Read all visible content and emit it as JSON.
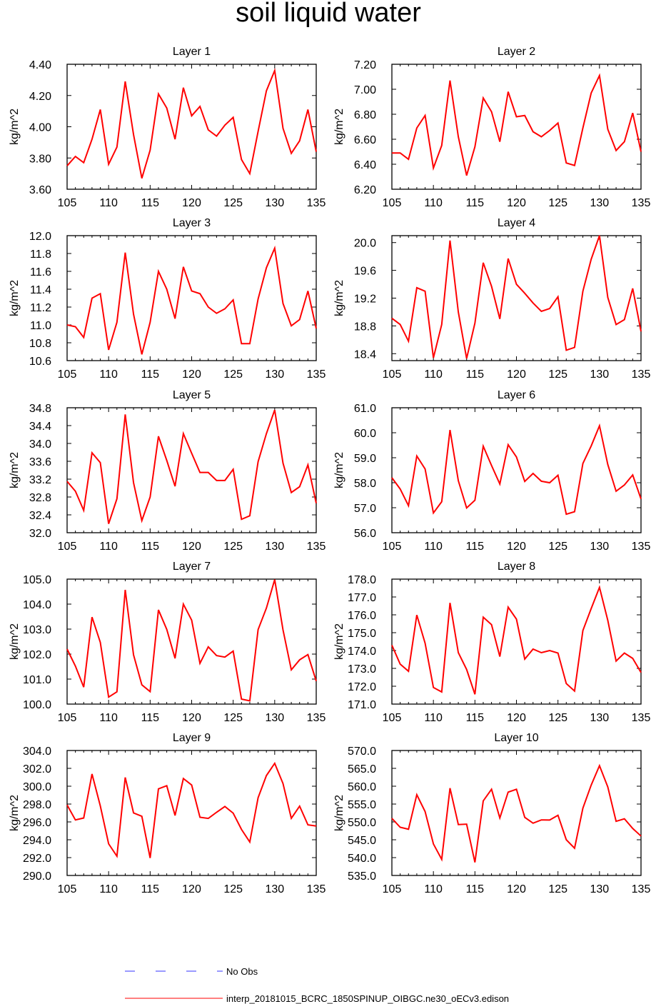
{
  "title": "soil liquid water",
  "colors": {
    "series": "#ff0000",
    "obs": "#3333ff",
    "axis": "#000000"
  },
  "legend": {
    "placement": "bottom-center",
    "entries": [
      {
        "label": "No Obs",
        "color": "#3333ff",
        "style": "dashed"
      },
      {
        "label": "interp_20181015_BCRC_1850SPINUP_OIBGC.ne30_oECv3.edison",
        "color": "#ff0000",
        "style": "solid"
      }
    ]
  },
  "chart_data": [
    {
      "type": "line",
      "title": "Layer 1",
      "ylabel": "kg/m^2",
      "xlim": [
        105,
        135
      ],
      "xticks": [
        "105",
        "110",
        "115",
        "120",
        "125",
        "130",
        "135"
      ],
      "ylim": [
        3.6,
        4.4
      ],
      "yticks": [
        "3.60",
        "3.80",
        "4.00",
        "4.20",
        "4.40"
      ],
      "x": [
        105,
        106,
        107,
        108,
        109,
        110,
        111,
        112,
        113,
        114,
        115,
        116,
        117,
        118,
        119,
        120,
        121,
        122,
        123,
        124,
        125,
        126,
        127,
        128,
        129,
        130,
        131,
        132,
        133,
        134,
        135
      ],
      "series": [
        {
          "values": [
            3.75,
            3.81,
            3.77,
            3.92,
            4.11,
            3.76,
            3.87,
            4.29,
            3.95,
            3.67,
            3.85,
            4.21,
            4.12,
            3.92,
            4.25,
            4.07,
            4.13,
            3.98,
            3.94,
            4.01,
            4.06,
            3.79,
            3.7,
            3.97,
            4.23,
            4.36,
            3.99,
            3.83,
            3.91,
            4.11,
            3.84
          ]
        }
      ]
    },
    {
      "type": "line",
      "title": "Layer 2",
      "ylabel": "kg/m^2",
      "xlim": [
        105,
        135
      ],
      "xticks": [
        "105",
        "110",
        "115",
        "120",
        "125",
        "130",
        "135"
      ],
      "ylim": [
        6.2,
        7.2
      ],
      "yticks": [
        "6.20",
        "6.40",
        "6.60",
        "6.80",
        "7.00",
        "7.20"
      ],
      "x": [
        105,
        106,
        107,
        108,
        109,
        110,
        111,
        112,
        113,
        114,
        115,
        116,
        117,
        118,
        119,
        120,
        121,
        122,
        123,
        124,
        125,
        126,
        127,
        128,
        129,
        130,
        131,
        132,
        133,
        134,
        135
      ],
      "series": [
        {
          "values": [
            6.49,
            6.49,
            6.44,
            6.69,
            6.79,
            6.37,
            6.55,
            7.07,
            6.62,
            6.31,
            6.54,
            6.93,
            6.82,
            6.58,
            6.98,
            6.78,
            6.79,
            6.66,
            6.62,
            6.67,
            6.73,
            6.41,
            6.39,
            6.69,
            6.97,
            7.11,
            6.68,
            6.51,
            6.58,
            6.81,
            6.5
          ]
        }
      ]
    },
    {
      "type": "line",
      "title": "Layer 3",
      "ylabel": "kg/m^2",
      "xlim": [
        105,
        135
      ],
      "xticks": [
        "105",
        "110",
        "115",
        "120",
        "125",
        "130",
        "135"
      ],
      "ylim": [
        10.6,
        12.0
      ],
      "yticks": [
        "10.6",
        "10.8",
        "11.0",
        "11.2",
        "11.4",
        "11.6",
        "11.8",
        "12.0"
      ],
      "x": [
        105,
        106,
        107,
        108,
        109,
        110,
        111,
        112,
        113,
        114,
        115,
        116,
        117,
        118,
        119,
        120,
        121,
        122,
        123,
        124,
        125,
        126,
        127,
        128,
        129,
        130,
        131,
        132,
        133,
        134,
        135
      ],
      "series": [
        {
          "values": [
            11.0,
            10.98,
            10.86,
            11.3,
            11.35,
            10.72,
            11.03,
            11.81,
            11.12,
            10.67,
            11.03,
            11.6,
            11.4,
            11.07,
            11.65,
            11.38,
            11.35,
            11.2,
            11.13,
            11.18,
            11.28,
            10.79,
            10.79,
            11.29,
            11.64,
            11.86,
            11.24,
            10.99,
            11.06,
            11.38,
            10.96
          ]
        }
      ]
    },
    {
      "type": "line",
      "title": "Layer 4",
      "ylabel": "kg/m^2",
      "xlim": [
        105,
        135
      ],
      "xticks": [
        "105",
        "110",
        "115",
        "120",
        "125",
        "130",
        "135"
      ],
      "ylim": [
        18.3,
        20.1
      ],
      "yticks": [
        "18.4",
        "18.8",
        "19.2",
        "19.6",
        "20.0"
      ],
      "x": [
        105,
        106,
        107,
        108,
        109,
        110,
        111,
        112,
        113,
        114,
        115,
        116,
        117,
        118,
        119,
        120,
        121,
        122,
        123,
        124,
        125,
        126,
        127,
        128,
        129,
        130,
        131,
        132,
        133,
        134,
        135
      ],
      "series": [
        {
          "values": [
            18.91,
            18.82,
            18.58,
            19.35,
            19.3,
            18.34,
            18.82,
            20.03,
            19.0,
            18.33,
            18.84,
            19.71,
            19.37,
            18.9,
            19.77,
            19.4,
            19.27,
            19.13,
            19.01,
            19.05,
            19.22,
            18.45,
            18.49,
            19.3,
            19.76,
            20.1,
            19.21,
            18.82,
            18.89,
            19.34,
            18.72
          ]
        }
      ]
    },
    {
      "type": "line",
      "title": "Layer 5",
      "ylabel": "kg/m^2",
      "xlim": [
        105,
        135
      ],
      "xticks": [
        "105",
        "110",
        "115",
        "120",
        "125",
        "130",
        "135"
      ],
      "ylim": [
        32.0,
        34.8
      ],
      "yticks": [
        "32.0",
        "32.4",
        "32.8",
        "33.2",
        "33.6",
        "34.0",
        "34.4",
        "34.8"
      ],
      "x": [
        105,
        106,
        107,
        108,
        109,
        110,
        111,
        112,
        113,
        114,
        115,
        116,
        117,
        118,
        119,
        120,
        121,
        122,
        123,
        124,
        125,
        126,
        127,
        128,
        129,
        130,
        131,
        132,
        133,
        134,
        135
      ],
      "series": [
        {
          "values": [
            33.15,
            32.93,
            32.5,
            33.79,
            33.57,
            32.2,
            32.76,
            34.65,
            33.12,
            32.27,
            32.8,
            34.16,
            33.62,
            33.04,
            34.22,
            33.78,
            33.35,
            33.35,
            33.17,
            33.17,
            33.42,
            32.3,
            32.38,
            33.59,
            34.22,
            34.75,
            33.56,
            32.9,
            33.03,
            33.52,
            32.66
          ]
        }
      ]
    },
    {
      "type": "line",
      "title": "Layer 6",
      "ylabel": "kg/m^2",
      "xlim": [
        105,
        135
      ],
      "xticks": [
        "105",
        "110",
        "115",
        "120",
        "125",
        "130",
        "135"
      ],
      "ylim": [
        56.0,
        61.0
      ],
      "yticks": [
        "56.0",
        "57.0",
        "58.0",
        "59.0",
        "60.0",
        "61.0"
      ],
      "x": [
        105,
        106,
        107,
        108,
        109,
        110,
        111,
        112,
        113,
        114,
        115,
        116,
        117,
        118,
        119,
        120,
        121,
        122,
        123,
        124,
        125,
        126,
        127,
        128,
        129,
        130,
        131,
        132,
        133,
        134,
        135
      ],
      "series": [
        {
          "values": [
            58.2,
            57.75,
            57.08,
            59.07,
            58.55,
            56.79,
            57.24,
            60.11,
            58.08,
            56.99,
            57.3,
            59.46,
            58.69,
            57.95,
            59.52,
            59.03,
            58.05,
            58.37,
            58.06,
            58.0,
            58.3,
            56.74,
            56.84,
            58.77,
            59.47,
            60.28,
            58.73,
            57.66,
            57.91,
            58.31,
            57.35
          ]
        }
      ]
    },
    {
      "type": "line",
      "title": "Layer 7",
      "ylabel": "kg/m^2",
      "xlim": [
        105,
        135
      ],
      "xticks": [
        "105",
        "110",
        "115",
        "120",
        "125",
        "130",
        "135"
      ],
      "ylim": [
        100.0,
        105.0
      ],
      "yticks": [
        "100.0",
        "101.0",
        "102.0",
        "103.0",
        "104.0",
        "105.0"
      ],
      "x": [
        105,
        106,
        107,
        108,
        109,
        110,
        111,
        112,
        113,
        114,
        115,
        116,
        117,
        118,
        119,
        120,
        121,
        122,
        123,
        124,
        125,
        126,
        127,
        128,
        129,
        130,
        131,
        132,
        133,
        134,
        135
      ],
      "series": [
        {
          "values": [
            102.2,
            101.52,
            100.68,
            103.48,
            102.47,
            100.28,
            100.49,
            104.57,
            101.97,
            100.77,
            100.5,
            103.77,
            102.99,
            101.83,
            104.0,
            103.36,
            101.63,
            102.29,
            101.94,
            101.88,
            102.12,
            100.2,
            100.13,
            102.98,
            103.84,
            104.98,
            102.97,
            101.37,
            101.77,
            101.98,
            100.92
          ]
        }
      ]
    },
    {
      "type": "line",
      "title": "Layer 8",
      "ylabel": "kg/m^2",
      "xlim": [
        105,
        135
      ],
      "xticks": [
        "105",
        "110",
        "115",
        "120",
        "125",
        "130",
        "135"
      ],
      "ylim": [
        171.0,
        178.0
      ],
      "yticks": [
        "171.0",
        "172.0",
        "173.0",
        "174.0",
        "175.0",
        "176.0",
        "177.0",
        "178.0"
      ],
      "x": [
        105,
        106,
        107,
        108,
        109,
        110,
        111,
        112,
        113,
        114,
        115,
        116,
        117,
        118,
        119,
        120,
        121,
        122,
        123,
        124,
        125,
        126,
        127,
        128,
        129,
        130,
        131,
        132,
        133,
        134,
        135
      ],
      "series": [
        {
          "values": [
            174.3,
            173.24,
            172.84,
            175.99,
            174.41,
            171.93,
            171.68,
            176.67,
            173.88,
            172.94,
            171.55,
            175.87,
            175.45,
            173.66,
            176.43,
            175.76,
            173.52,
            174.08,
            173.88,
            174.0,
            173.86,
            172.15,
            171.73,
            175.12,
            176.35,
            177.54,
            175.69,
            173.41,
            173.86,
            173.56,
            172.77
          ]
        }
      ]
    },
    {
      "type": "line",
      "title": "Layer 9",
      "ylabel": "kg/m^2",
      "xlim": [
        105,
        135
      ],
      "xticks": [
        "105",
        "110",
        "115",
        "120",
        "125",
        "130",
        "135"
      ],
      "ylim": [
        290.0,
        304.0
      ],
      "yticks": [
        "290.0",
        "292.0",
        "294.0",
        "296.0",
        "298.0",
        "300.0",
        "302.0",
        "304.0"
      ],
      "x": [
        105,
        106,
        107,
        108,
        109,
        110,
        111,
        112,
        113,
        114,
        115,
        116,
        117,
        118,
        119,
        120,
        121,
        122,
        123,
        124,
        125,
        126,
        127,
        128,
        129,
        130,
        131,
        132,
        133,
        134,
        135
      ],
      "series": [
        {
          "values": [
            297.9,
            296.22,
            296.44,
            301.37,
            297.79,
            293.55,
            292.16,
            300.98,
            297.01,
            296.63,
            291.96,
            299.7,
            300.05,
            296.72,
            300.86,
            300.13,
            296.52,
            296.39,
            297.08,
            297.73,
            296.98,
            295.16,
            293.75,
            298.71,
            301.19,
            302.56,
            300.3,
            296.4,
            297.77,
            295.67,
            295.54
          ]
        }
      ]
    },
    {
      "type": "line",
      "title": "Layer 10",
      "ylabel": "kg/m^2",
      "xlim": [
        105,
        135
      ],
      "xticks": [
        "105",
        "110",
        "115",
        "120",
        "125",
        "130",
        "135"
      ],
      "ylim": [
        535.0,
        570.0
      ],
      "yticks": [
        "535.0",
        "540.0",
        "545.0",
        "550.0",
        "555.0",
        "560.0",
        "565.0",
        "570.0"
      ],
      "x": [
        105,
        106,
        107,
        108,
        109,
        110,
        111,
        112,
        113,
        114,
        115,
        116,
        117,
        118,
        119,
        120,
        121,
        122,
        123,
        124,
        125,
        126,
        127,
        128,
        129,
        130,
        131,
        132,
        133,
        134,
        135
      ],
      "series": [
        {
          "values": [
            551.0,
            548.5,
            547.95,
            557.61,
            552.9,
            543.84,
            539.51,
            559.46,
            549.26,
            549.37,
            538.67,
            555.88,
            559.15,
            551.1,
            558.35,
            559.15,
            551.28,
            549.64,
            550.55,
            550.52,
            551.86,
            545.0,
            542.64,
            553.85,
            560.31,
            565.75,
            559.8,
            550.17,
            550.87,
            548.17,
            546.04
          ]
        }
      ]
    }
  ]
}
